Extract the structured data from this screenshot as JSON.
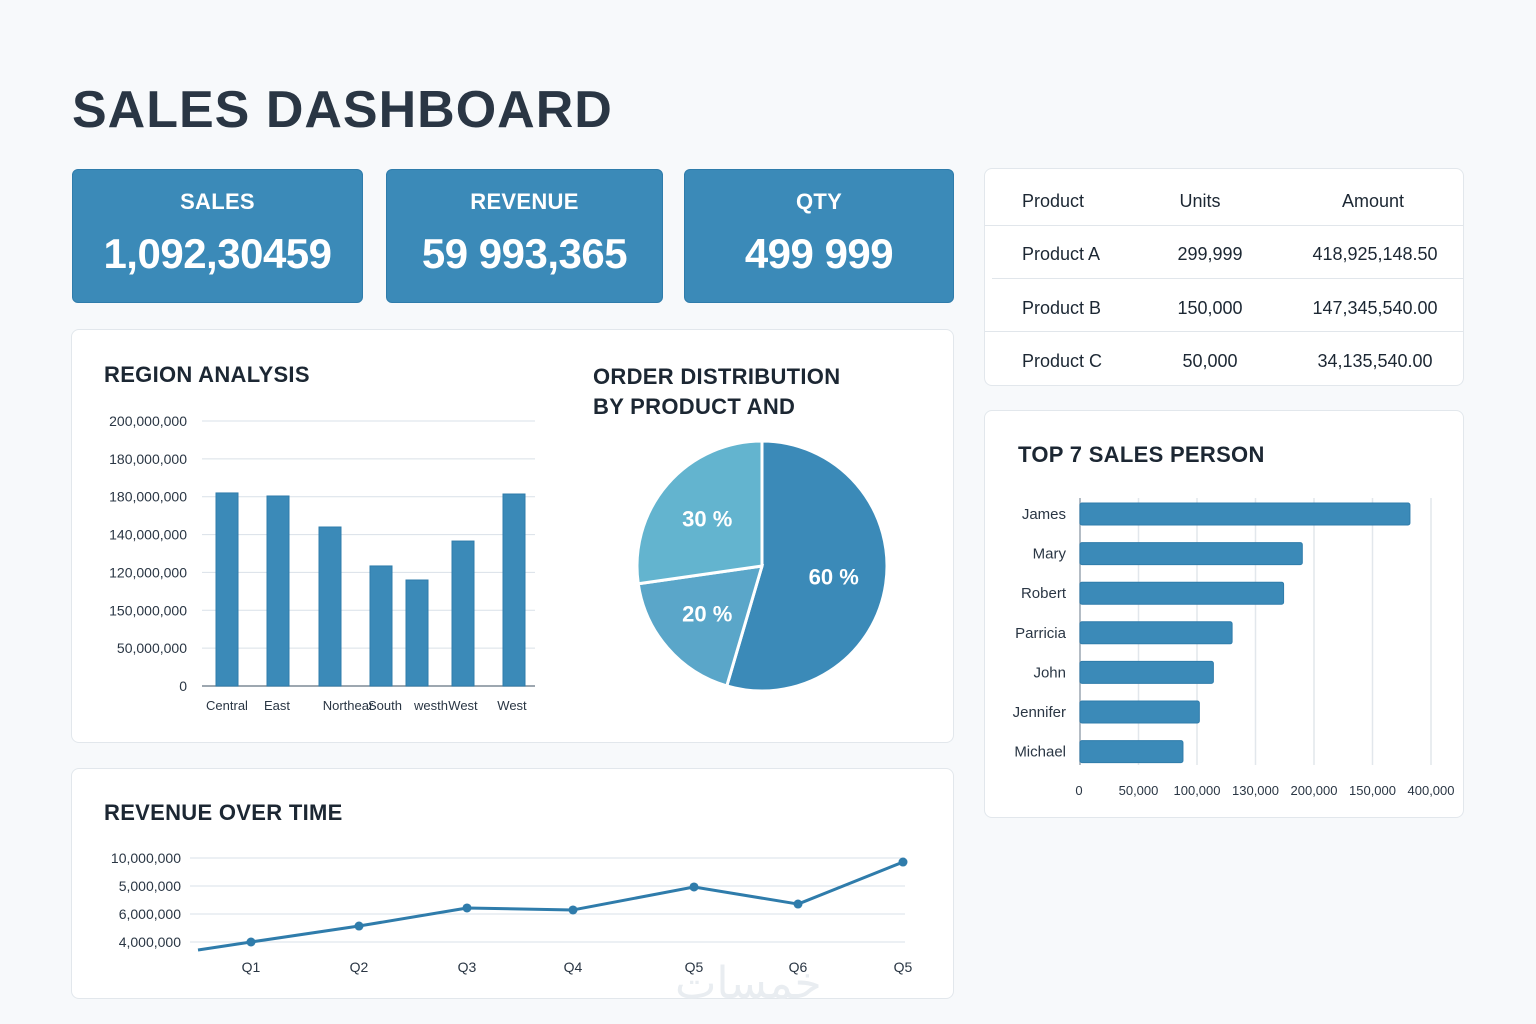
{
  "page": {
    "title": "SALES DASHBOARD",
    "watermark": "خمسات"
  },
  "kpis": [
    {
      "label": "SALES",
      "value": "1,092,30459"
    },
    {
      "label": "REVENUE",
      "value": "59 993,365"
    },
    {
      "label": "QTY",
      "value": "499 999"
    }
  ],
  "product_table": {
    "headers": [
      "Product",
      "Units",
      "Amount"
    ],
    "rows": [
      [
        "Product A",
        "299,999",
        "418,925,148.50"
      ],
      [
        "Product B",
        "150,000",
        "147,345,540.00"
      ],
      [
        "Product C",
        "50,000",
        "34,135,540.00"
      ]
    ]
  },
  "colors": {
    "accent": "#3b8ab8",
    "accent_dark": "#2f7cab",
    "pie_light": "#63b4cf",
    "pie_mid": "#5aa6c9",
    "grid": "#d9e1e8"
  },
  "chart_data": [
    {
      "id": "region",
      "type": "bar",
      "title": "REGION ANALYSIS",
      "xlabel": "",
      "ylabel": "",
      "categories": [
        "Central",
        "East",
        "Northear",
        "South",
        "westh",
        "West",
        "West"
      ],
      "values": [
        145700000,
        143400000,
        120000000,
        90600000,
        80000000,
        109400000,
        144900000
      ],
      "ytick_labels": [
        "200,000,000",
        "180,000,000",
        "180,000,000",
        "140,000,000",
        "120,000,000",
        "150,000,000",
        "50,000,000",
        "0"
      ],
      "ylim": [
        0,
        200000000
      ],
      "grid": true
    },
    {
      "id": "order_distribution",
      "type": "pie",
      "title": "ORDER DISTRIBUTION BY PRODUCT AND",
      "slices": [
        {
          "label": "60 %",
          "value": 60
        },
        {
          "label": "20 %",
          "value": 20
        },
        {
          "label": "30 %",
          "value": 30
        }
      ]
    },
    {
      "id": "top_sales",
      "type": "bar",
      "orientation": "horizontal",
      "title": "TOP 7 SALES PERSON",
      "categories": [
        "James",
        "Mary",
        "Robert",
        "Parricia",
        "John",
        "Jennifer",
        "Michael"
      ],
      "values": [
        282000,
        190000,
        174000,
        130000,
        114000,
        102000,
        88000
      ],
      "xtick_labels": [
        "0",
        "50,000",
        "100,000",
        "130,000",
        "200,000",
        "150,000",
        "400,000"
      ],
      "xlim": [
        0,
        300000
      ],
      "grid": true
    },
    {
      "id": "revenue_over_time",
      "type": "line",
      "title": "REVENUE OVER TIME",
      "categories": [
        "Q1",
        "Q2",
        "Q3",
        "Q4",
        "Q5",
        "Q6",
        "Q5"
      ],
      "values": [
        4000000,
        5140000,
        6430000,
        6290000,
        7930000,
        6710000,
        9710000
      ],
      "line_start_value": 3430000,
      "ytick_labels": [
        "10,000,000",
        "5,000,000",
        "6,000,000",
        "4,000,000"
      ],
      "ylim": [
        4000000,
        10000000
      ],
      "grid": true
    }
  ]
}
